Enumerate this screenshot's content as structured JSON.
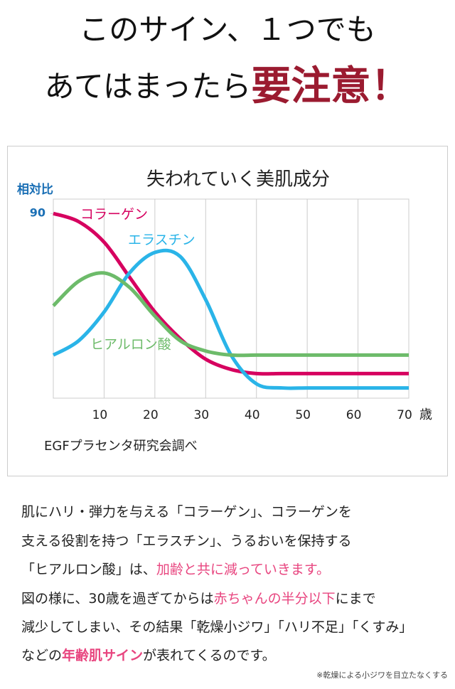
{
  "header": {
    "line1": "このサイン、１つでも",
    "line2": "あてはまったら",
    "emphasis": "要注意！"
  },
  "chart_data": {
    "type": "line",
    "title": "失われていく美肌成分",
    "ylabel": "相対比",
    "xlabel": "歳",
    "source": "EGFプラセンタ研究会調べ",
    "x": [
      0,
      5,
      10,
      15,
      20,
      25,
      30,
      35,
      40,
      45,
      50,
      55,
      60,
      65,
      70
    ],
    "xlim": [
      0,
      70
    ],
    "xticks": [
      10,
      20,
      30,
      40,
      50,
      60,
      70
    ],
    "ylim": [
      0,
      97
    ],
    "yticks": [
      90
    ],
    "grid": true,
    "series": [
      {
        "name": "コラーゲン",
        "color": "#d6005f",
        "values": [
          90,
          86,
          76,
          59,
          42,
          29,
          19,
          14,
          12,
          12,
          12,
          12,
          12,
          12,
          12
        ]
      },
      {
        "name": "エラスチン",
        "color": "#2ab4e8",
        "values": [
          21,
          28,
          42,
          61,
          71,
          69,
          48,
          21,
          7,
          5,
          5,
          5,
          5,
          5,
          5
        ]
      },
      {
        "name": "ヒアルロン酸",
        "color": "#6dbb6a",
        "values": [
          45,
          57,
          61,
          54,
          40,
          28,
          23,
          21,
          21,
          21,
          21,
          21,
          21,
          21,
          21
        ]
      }
    ]
  },
  "body": {
    "lines": [
      [
        "肌にハリ・弾力を与える「コラーゲン」、コラーゲンを"
      ],
      [
        "支える役割を持つ「エラスチン」、うるおいを保持する"
      ],
      [
        "「ヒアルロン酸」は、",
        "加齢と共に減っていきます。"
      ],
      [
        "図の様に、30歳を過ぎてからは",
        "赤ちゃんの半分以下",
        "にまで"
      ],
      [
        "減少してしまい、その結果「乾燥小ジワ」「ハリ不足」「くすみ」"
      ],
      [
        "などの",
        "年齢肌サイン",
        "が表れてくるのです。"
      ]
    ],
    "note": "※乾燥による小ジワを目立たなくする"
  }
}
